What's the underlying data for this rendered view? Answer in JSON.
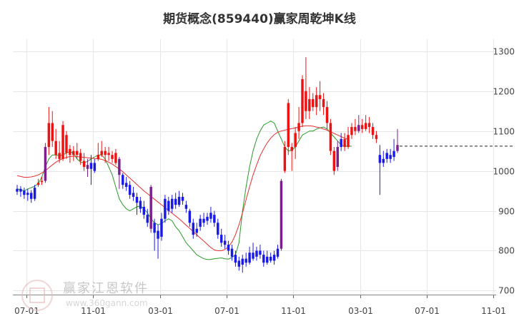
{
  "chart_data": {
    "type": "candlestick",
    "title": "期货概念(859440)赢家周乾坤K线",
    "y_ticks": [
      700,
      800,
      900,
      1000,
      1100,
      1200,
      1300
    ],
    "ylim": [
      690,
      1330
    ],
    "x_tick_labels": [
      "07-01",
      "11-01",
      "03-01",
      "07-01",
      "11-01",
      "03-01",
      "07-01",
      "11-01"
    ],
    "last_value": 1062,
    "grid": true,
    "colors": {
      "up": "#ee1111",
      "down": "#1a1ae6",
      "special": "#7b1f8c",
      "ma_short": "#2a9a2a",
      "ma_long": "#e83030",
      "grid": "#e6e6e6",
      "axis_text": "#444444",
      "dashed_line": "#222222"
    },
    "series": [
      {
        "name": "",
        "kind": "ma_short",
        "values": [
          955,
          953,
          950,
          955,
          958,
          962,
          968,
          985,
          1010,
          1030,
          1040,
          1040,
          1038,
          1040,
          1045,
          1048,
          1045,
          1030,
          1022,
          1020,
          1024,
          1030,
          1035,
          1040,
          1040,
          1030,
          1010,
          990,
          960,
          930,
          915,
          905,
          900,
          905,
          910,
          912,
          905,
          895,
          880,
          870,
          865,
          868,
          875,
          880,
          875,
          860,
          850,
          835,
          820,
          810,
          800,
          790,
          785,
          780,
          778,
          778,
          780,
          781,
          782,
          780,
          779,
          783,
          790,
          820,
          900,
          960,
          1010,
          1050,
          1080,
          1100,
          1115,
          1120,
          1125,
          1120,
          1100,
          1080,
          1060,
          1050,
          1052,
          1060,
          1075,
          1090,
          1095,
          1100,
          1100,
          1105,
          1108,
          1110,
          1105,
          1095,
          1085,
          1075,
          1065,
          1062,
          1062,
          1062
        ]
      },
      {
        "name": "",
        "kind": "ma_long",
        "values": [
          988,
          986,
          984,
          984,
          985,
          987,
          990,
          995,
          1000,
          1008,
          1015,
          1022,
          1027,
          1031,
          1034,
          1036,
          1037,
          1036,
          1035,
          1034,
          1033,
          1032,
          1031,
          1030,
          1029,
          1026,
          1022,
          1017,
          1011,
          1005,
          998,
          990,
          982,
          974,
          966,
          958,
          950,
          943,
          936,
          929,
          922,
          915,
          908,
          901,
          894,
          887,
          880,
          872,
          864,
          856,
          848,
          840,
          832,
          824,
          816,
          808,
          802,
          800,
          800,
          803,
          810,
          822,
          840,
          865,
          895,
          928,
          960,
          990,
          1015,
          1038,
          1055,
          1070,
          1082,
          1091,
          1097,
          1100,
          1102,
          1104,
          1106,
          1108,
          1110,
          1112,
          1113,
          1113,
          1112,
          1110,
          1108,
          1105,
          1102,
          1098,
          1094,
          1090,
          1086,
          1082,
          1079
        ]
      }
    ],
    "candles": [
      {
        "o": 948,
        "c": 955,
        "h": 965,
        "l": 940,
        "color": "down"
      },
      {
        "o": 955,
        "c": 948,
        "h": 962,
        "l": 935,
        "color": "down"
      },
      {
        "o": 950,
        "c": 940,
        "h": 958,
        "l": 930,
        "color": "down"
      },
      {
        "o": 940,
        "c": 945,
        "h": 955,
        "l": 925,
        "color": "down"
      },
      {
        "o": 945,
        "c": 930,
        "h": 952,
        "l": 920,
        "color": "down"
      },
      {
        "o": 930,
        "c": 958,
        "h": 965,
        "l": 925,
        "color": "down"
      },
      {
        "o": 965,
        "c": 970,
        "h": 980,
        "l": 960,
        "color": "up"
      },
      {
        "o": 972,
        "c": 975,
        "h": 985,
        "l": 965,
        "color": "up"
      },
      {
        "o": 975,
        "c": 1060,
        "h": 1070,
        "l": 970,
        "color": "special"
      },
      {
        "o": 1060,
        "c": 1120,
        "h": 1160,
        "l": 1040,
        "color": "up"
      },
      {
        "o": 1120,
        "c": 1075,
        "h": 1150,
        "l": 1060,
        "color": "up"
      },
      {
        "o": 1075,
        "c": 1040,
        "h": 1105,
        "l": 1030,
        "color": "up"
      },
      {
        "o": 1045,
        "c": 1030,
        "h": 1075,
        "l": 1020,
        "color": "up"
      },
      {
        "o": 1030,
        "c": 1115,
        "h": 1125,
        "l": 1025,
        "color": "up"
      },
      {
        "o": 1090,
        "c": 1045,
        "h": 1100,
        "l": 1030,
        "color": "up"
      },
      {
        "o": 1040,
        "c": 1055,
        "h": 1065,
        "l": 1020,
        "color": "up"
      },
      {
        "o": 1050,
        "c": 1040,
        "h": 1062,
        "l": 1025,
        "color": "up"
      },
      {
        "o": 1040,
        "c": 1050,
        "h": 1070,
        "l": 1030,
        "color": "up"
      },
      {
        "o": 1045,
        "c": 1025,
        "h": 1055,
        "l": 1015,
        "color": "up"
      },
      {
        "o": 1025,
        "c": 1010,
        "h": 1045,
        "l": 1000,
        "color": "up"
      },
      {
        "o": 1015,
        "c": 1005,
        "h": 1030,
        "l": 985,
        "color": "special"
      },
      {
        "o": 1005,
        "c": 1020,
        "h": 1040,
        "l": 965,
        "color": "down"
      },
      {
        "o": 1020,
        "c": 1000,
        "h": 1030,
        "l": 995,
        "color": "down"
      },
      {
        "o": 1030,
        "c": 1040,
        "h": 1070,
        "l": 1025,
        "color": "up"
      },
      {
        "o": 1040,
        "c": 1050,
        "h": 1075,
        "l": 1035,
        "color": "up"
      },
      {
        "o": 1050,
        "c": 1040,
        "h": 1060,
        "l": 1020,
        "color": "up"
      },
      {
        "o": 1040,
        "c": 1045,
        "h": 1060,
        "l": 1025,
        "color": "up"
      },
      {
        "o": 1040,
        "c": 1030,
        "h": 1050,
        "l": 1020,
        "color": "up"
      },
      {
        "o": 1020,
        "c": 1045,
        "h": 1055,
        "l": 1015,
        "color": "up"
      },
      {
        "o": 1030,
        "c": 990,
        "h": 1035,
        "l": 955,
        "color": "special"
      },
      {
        "o": 990,
        "c": 965,
        "h": 995,
        "l": 955,
        "color": "down"
      },
      {
        "o": 970,
        "c": 960,
        "h": 985,
        "l": 950,
        "color": "down"
      },
      {
        "o": 965,
        "c": 940,
        "h": 975,
        "l": 930,
        "color": "down"
      },
      {
        "o": 945,
        "c": 935,
        "h": 960,
        "l": 925,
        "color": "down"
      },
      {
        "o": 935,
        "c": 920,
        "h": 945,
        "l": 890,
        "color": "down"
      },
      {
        "o": 925,
        "c": 905,
        "h": 935,
        "l": 895,
        "color": "down"
      },
      {
        "o": 910,
        "c": 890,
        "h": 925,
        "l": 880,
        "color": "down"
      },
      {
        "o": 890,
        "c": 870,
        "h": 905,
        "l": 860,
        "color": "down"
      },
      {
        "o": 960,
        "c": 855,
        "h": 965,
        "l": 845,
        "color": "special"
      },
      {
        "o": 870,
        "c": 845,
        "h": 880,
        "l": 800,
        "color": "down"
      },
      {
        "o": 850,
        "c": 830,
        "h": 865,
        "l": 780,
        "color": "down"
      },
      {
        "o": 835,
        "c": 880,
        "h": 895,
        "l": 825,
        "color": "down"
      },
      {
        "o": 880,
        "c": 930,
        "h": 940,
        "l": 870,
        "color": "down"
      },
      {
        "o": 925,
        "c": 900,
        "h": 935,
        "l": 890,
        "color": "down"
      },
      {
        "o": 905,
        "c": 930,
        "h": 940,
        "l": 895,
        "color": "down"
      },
      {
        "o": 930,
        "c": 915,
        "h": 945,
        "l": 905,
        "color": "down"
      },
      {
        "o": 915,
        "c": 935,
        "h": 950,
        "l": 910,
        "color": "down"
      },
      {
        "o": 935,
        "c": 925,
        "h": 945,
        "l": 915,
        "color": "down"
      },
      {
        "o": 915,
        "c": 905,
        "h": 925,
        "l": 895,
        "color": "down"
      },
      {
        "o": 900,
        "c": 870,
        "h": 905,
        "l": 860,
        "color": "down"
      },
      {
        "o": 870,
        "c": 840,
        "h": 880,
        "l": 830,
        "color": "down"
      },
      {
        "o": 845,
        "c": 855,
        "h": 870,
        "l": 835,
        "color": "down"
      },
      {
        "o": 860,
        "c": 880,
        "h": 890,
        "l": 850,
        "color": "down"
      },
      {
        "o": 880,
        "c": 870,
        "h": 895,
        "l": 860,
        "color": "down"
      },
      {
        "o": 875,
        "c": 885,
        "h": 895,
        "l": 865,
        "color": "down"
      },
      {
        "o": 880,
        "c": 895,
        "h": 910,
        "l": 870,
        "color": "down"
      },
      {
        "o": 890,
        "c": 870,
        "h": 900,
        "l": 860,
        "color": "down"
      },
      {
        "o": 870,
        "c": 840,
        "h": 880,
        "l": 830,
        "color": "down"
      },
      {
        "o": 840,
        "c": 820,
        "h": 855,
        "l": 810,
        "color": "down"
      },
      {
        "o": 825,
        "c": 815,
        "h": 840,
        "l": 805,
        "color": "down"
      },
      {
        "o": 815,
        "c": 800,
        "h": 825,
        "l": 790,
        "color": "down"
      },
      {
        "o": 805,
        "c": 785,
        "h": 815,
        "l": 775,
        "color": "down"
      },
      {
        "o": 790,
        "c": 770,
        "h": 800,
        "l": 760,
        "color": "down"
      },
      {
        "o": 775,
        "c": 760,
        "h": 785,
        "l": 750,
        "color": "down"
      },
      {
        "o": 765,
        "c": 780,
        "h": 790,
        "l": 745,
        "color": "down"
      },
      {
        "o": 780,
        "c": 770,
        "h": 795,
        "l": 760,
        "color": "down"
      },
      {
        "o": 770,
        "c": 795,
        "h": 810,
        "l": 765,
        "color": "down"
      },
      {
        "o": 795,
        "c": 780,
        "h": 820,
        "l": 775,
        "color": "down"
      },
      {
        "o": 785,
        "c": 800,
        "h": 810,
        "l": 775,
        "color": "down"
      },
      {
        "o": 800,
        "c": 790,
        "h": 815,
        "l": 780,
        "color": "down"
      },
      {
        "o": 790,
        "c": 770,
        "h": 800,
        "l": 760,
        "color": "down"
      },
      {
        "o": 770,
        "c": 785,
        "h": 800,
        "l": 765,
        "color": "down"
      },
      {
        "o": 785,
        "c": 775,
        "h": 795,
        "l": 770,
        "color": "down"
      },
      {
        "o": 775,
        "c": 790,
        "h": 800,
        "l": 765,
        "color": "down"
      },
      {
        "o": 785,
        "c": 805,
        "h": 815,
        "l": 780,
        "color": "down"
      },
      {
        "o": 805,
        "c": 975,
        "h": 980,
        "l": 800,
        "color": "special"
      },
      {
        "o": 1000,
        "c": 1060,
        "h": 1075,
        "l": 995,
        "color": "up"
      },
      {
        "o": 1060,
        "c": 1170,
        "h": 1180,
        "l": 1040,
        "color": "up"
      },
      {
        "o": 1060,
        "c": 1050,
        "h": 1070,
        "l": 1000,
        "color": "up"
      },
      {
        "o": 1060,
        "c": 1095,
        "h": 1110,
        "l": 1030,
        "color": "up"
      },
      {
        "o": 1100,
        "c": 1120,
        "h": 1160,
        "l": 1080,
        "color": "up"
      },
      {
        "o": 1120,
        "c": 1230,
        "h": 1240,
        "l": 1110,
        "color": "up"
      },
      {
        "o": 1200,
        "c": 1150,
        "h": 1285,
        "l": 1130,
        "color": "up"
      },
      {
        "o": 1150,
        "c": 1180,
        "h": 1210,
        "l": 1130,
        "color": "up"
      },
      {
        "o": 1180,
        "c": 1160,
        "h": 1195,
        "l": 1150,
        "color": "up"
      },
      {
        "o": 1160,
        "c": 1190,
        "h": 1210,
        "l": 1140,
        "color": "up"
      },
      {
        "o": 1190,
        "c": 1180,
        "h": 1225,
        "l": 1150,
        "color": "up"
      },
      {
        "o": 1180,
        "c": 1160,
        "h": 1195,
        "l": 1140,
        "color": "up"
      },
      {
        "o": 1160,
        "c": 1120,
        "h": 1175,
        "l": 1105,
        "color": "up"
      },
      {
        "o": 1120,
        "c": 1050,
        "h": 1130,
        "l": 1040,
        "color": "up"
      },
      {
        "o": 1050,
        "c": 1000,
        "h": 1060,
        "l": 990,
        "color": "up"
      },
      {
        "o": 1010,
        "c": 1060,
        "h": 1075,
        "l": 1000,
        "color": "special"
      },
      {
        "o": 1060,
        "c": 1080,
        "h": 1095,
        "l": 1050,
        "color": "down"
      },
      {
        "o": 1080,
        "c": 1060,
        "h": 1095,
        "l": 1050,
        "color": "up"
      },
      {
        "o": 1060,
        "c": 1090,
        "h": 1110,
        "l": 1055,
        "color": "up"
      },
      {
        "o": 1090,
        "c": 1110,
        "h": 1120,
        "l": 1080,
        "color": "up"
      },
      {
        "o": 1110,
        "c": 1100,
        "h": 1130,
        "l": 1090,
        "color": "up"
      },
      {
        "o": 1100,
        "c": 1115,
        "h": 1140,
        "l": 1095,
        "color": "special"
      },
      {
        "o": 1115,
        "c": 1105,
        "h": 1130,
        "l": 1095,
        "color": "up"
      },
      {
        "o": 1105,
        "c": 1120,
        "h": 1140,
        "l": 1100,
        "color": "up"
      },
      {
        "o": 1120,
        "c": 1110,
        "h": 1135,
        "l": 1095,
        "color": "up"
      },
      {
        "o": 1110,
        "c": 1090,
        "h": 1120,
        "l": 1080,
        "color": "up"
      },
      {
        "o": 1090,
        "c": 1080,
        "h": 1100,
        "l": 1070,
        "color": "up"
      },
      {
        "o": 1040,
        "c": 1020,
        "h": 1065,
        "l": 940,
        "color": "down"
      },
      {
        "o": 1020,
        "c": 1030,
        "h": 1050,
        "l": 1010,
        "color": "down"
      },
      {
        "o": 1030,
        "c": 1045,
        "h": 1055,
        "l": 1020,
        "color": "down"
      },
      {
        "o": 1040,
        "c": 1030,
        "h": 1055,
        "l": 1020,
        "color": "down"
      },
      {
        "o": 1035,
        "c": 1050,
        "h": 1080,
        "l": 1025,
        "color": "down"
      },
      {
        "o": 1050,
        "c": 1065,
        "h": 1105,
        "l": 1045,
        "color": "special"
      }
    ]
  },
  "watermark": {
    "name": "赢家江恩软件",
    "site": "www.360gann.com"
  }
}
